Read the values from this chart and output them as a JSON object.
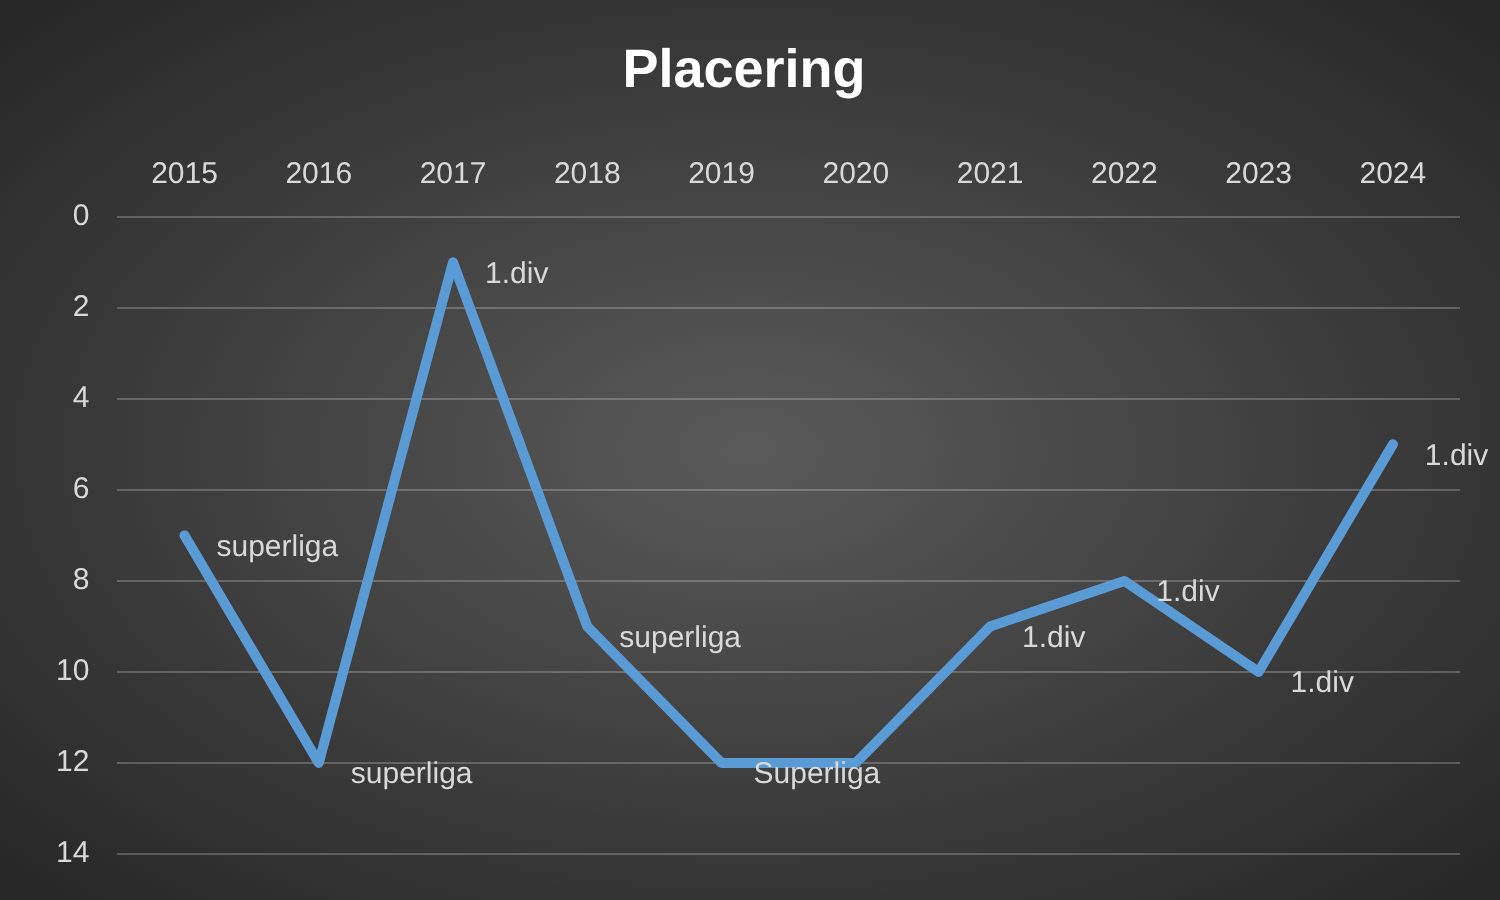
{
  "chart_data": {
    "type": "line",
    "title": "Placering",
    "categories": [
      "2015",
      "2016",
      "2017",
      "2018",
      "2019",
      "2020",
      "2021",
      "2022",
      "2023",
      "2024"
    ],
    "series": [
      {
        "color": "#5b9bd5",
        "values": [
          7,
          12,
          1,
          9,
          12,
          12,
          9,
          8,
          10,
          5
        ]
      }
    ],
    "annotations": [
      {
        "text": "superliga",
        "x": "2015",
        "y": 7
      },
      {
        "text": "superliga",
        "x": "2016",
        "y": 12
      },
      {
        "text": "1.div",
        "x": "2017",
        "y": 1
      },
      {
        "text": "superliga",
        "x": "2018",
        "y": 9
      },
      {
        "text": "Superliga",
        "x": "2019",
        "y": 12
      },
      {
        "text": "1.div",
        "x": "2021",
        "y": 9
      },
      {
        "text": "1.div",
        "x": "2022",
        "y": 8
      },
      {
        "text": "1.div",
        "x": "2023",
        "y": 10
      },
      {
        "text": "1.div",
        "x": "2024",
        "y": 5
      }
    ],
    "ylim": [
      14,
      0
    ],
    "yticks": [
      0,
      2,
      4,
      6,
      8,
      10,
      12,
      14
    ],
    "grid": "y",
    "legend": false,
    "marker": "none",
    "line_style": "solid"
  }
}
